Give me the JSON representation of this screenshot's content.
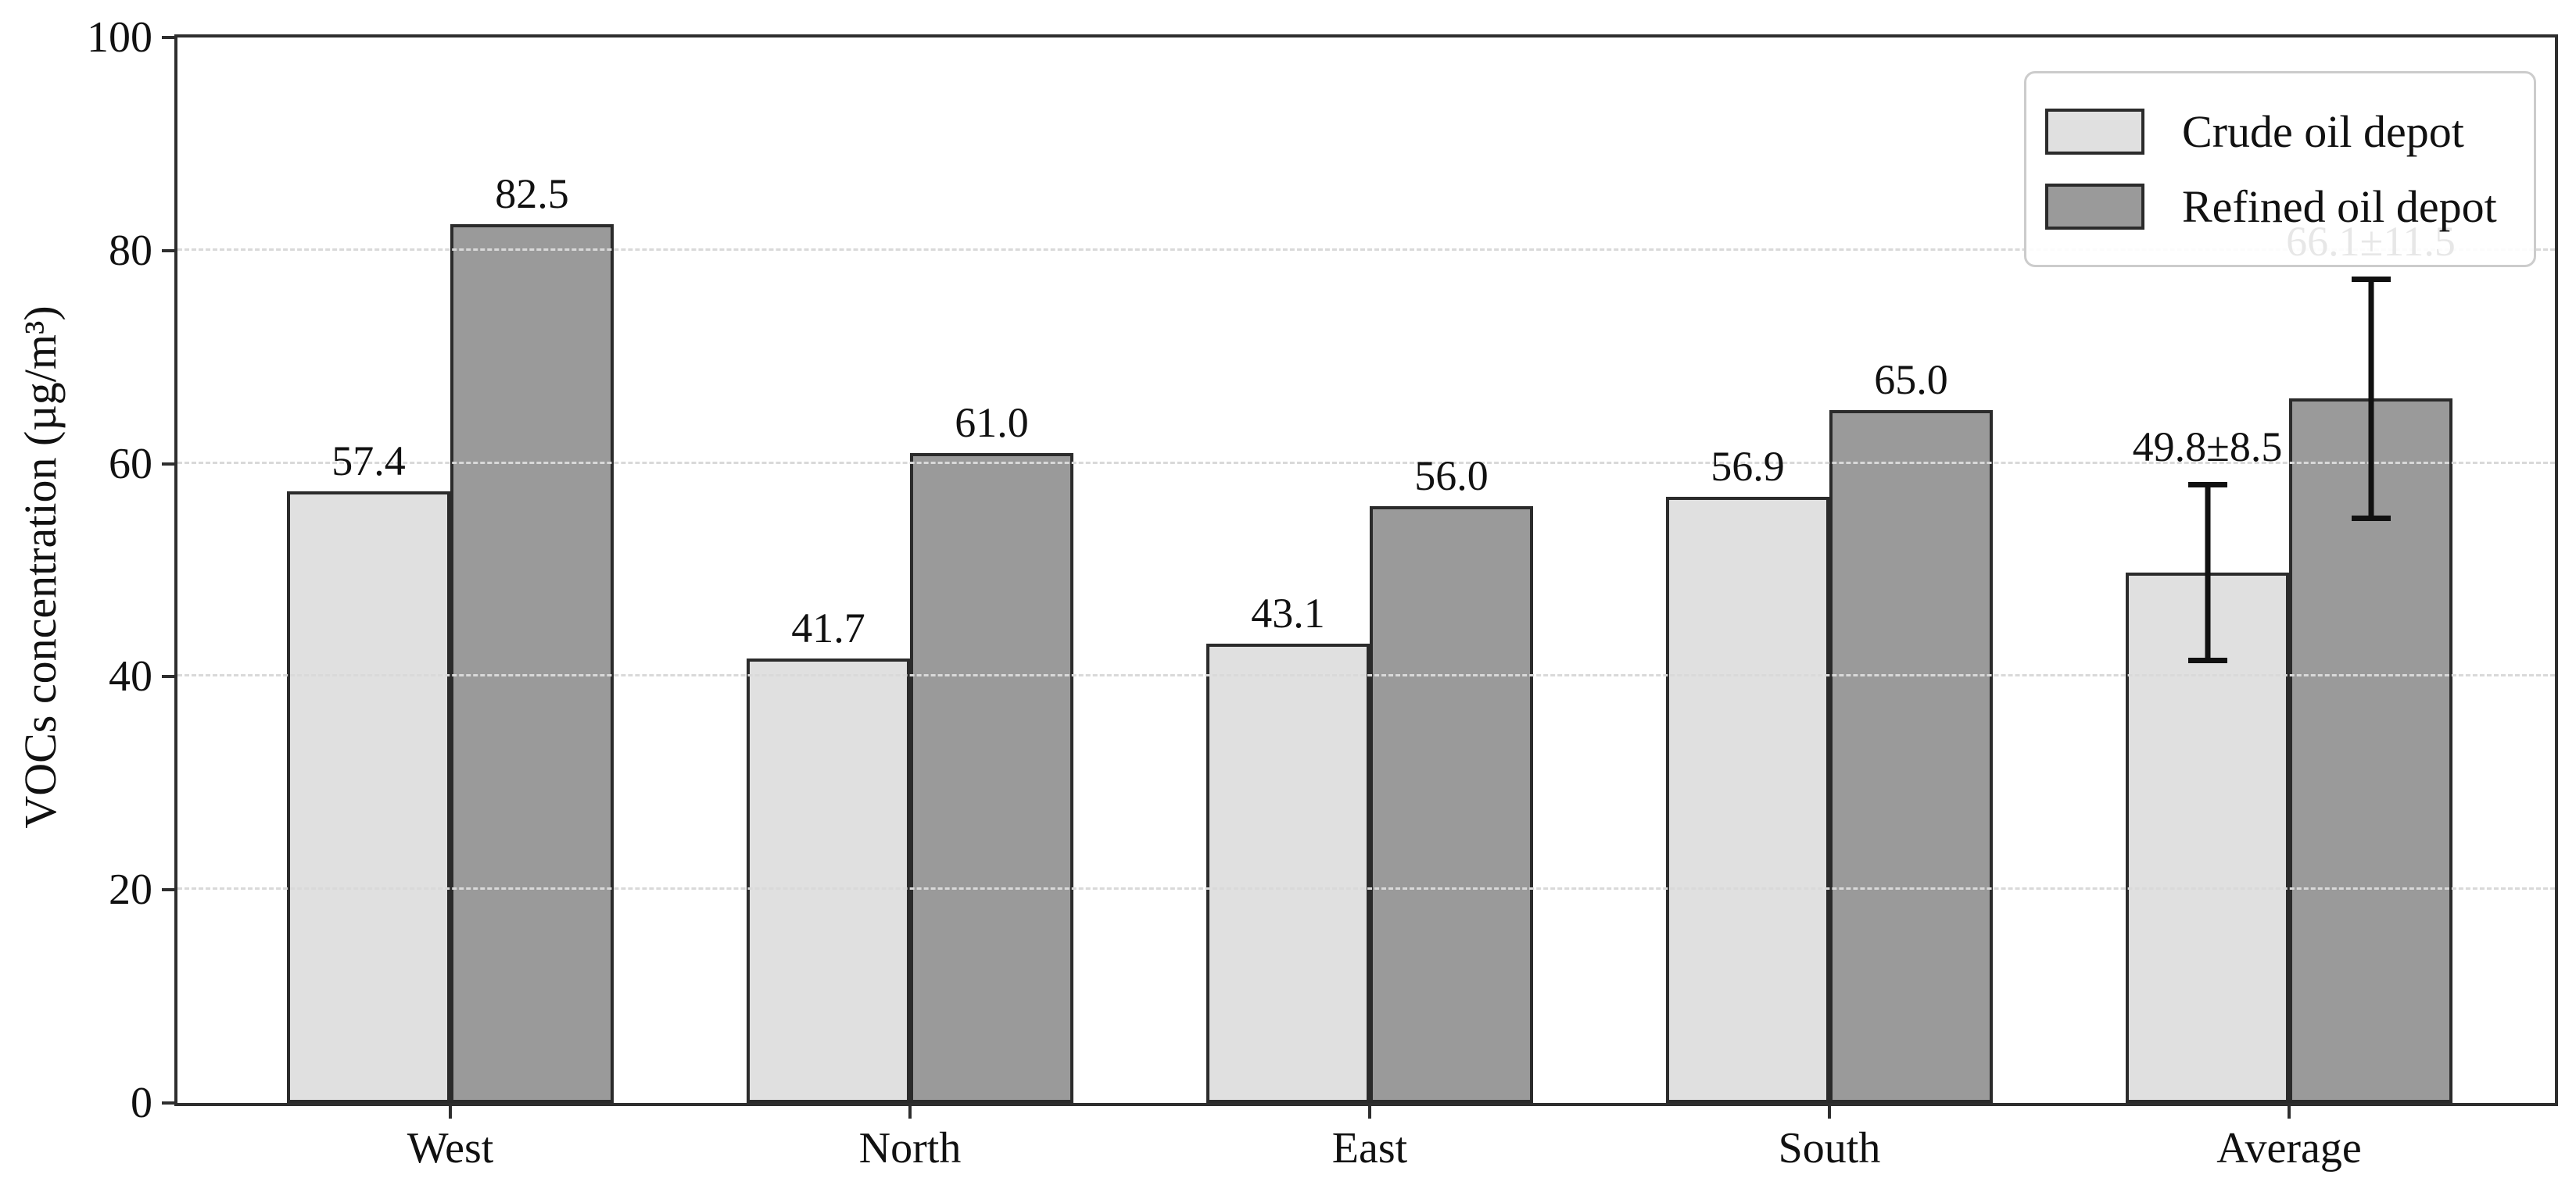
{
  "chart_data": {
    "type": "bar",
    "title": "",
    "categories": [
      "West",
      "North",
      "East",
      "South",
      "Average"
    ],
    "series": [
      {
        "name": "Crude oil depot",
        "color": "#e0e0e0",
        "edge_color": "#2b2b2b",
        "values": [
          57.4,
          41.7,
          43.1,
          56.9,
          49.8
        ],
        "errors": [
          null,
          null,
          null,
          null,
          8.5
        ],
        "point_labels": [
          "57.4",
          "41.7",
          "43.1",
          "56.9",
          "49.8±8.5"
        ]
      },
      {
        "name": "Refined oil depot",
        "color": "#9a9a9a",
        "edge_color": "#2b2b2b",
        "values": [
          82.5,
          61.0,
          56.0,
          65.0,
          66.1
        ],
        "errors": [
          null,
          null,
          null,
          null,
          11.5
        ],
        "point_labels": [
          "82.5",
          "61.0",
          "56.0",
          "65.0",
          "66.1±11.5"
        ]
      }
    ],
    "xlabel": "",
    "ylabel": "VOCs concentration (µg/m³)",
    "ylim": [
      0,
      100
    ],
    "yticks": [
      0,
      20,
      40,
      60,
      80,
      100
    ],
    "grid": {
      "visible": true,
      "axis": "y",
      "style": "dashed",
      "color": "#d9d9d9",
      "values": [
        20,
        40,
        60,
        80
      ]
    },
    "legend": {
      "position": "upper right",
      "entries": [
        "Crude oil depot",
        "Refined oil depot"
      ]
    },
    "error_bar_color": "#111111",
    "axis_color": "#2e2e2e",
    "background": "#ffffff"
  }
}
